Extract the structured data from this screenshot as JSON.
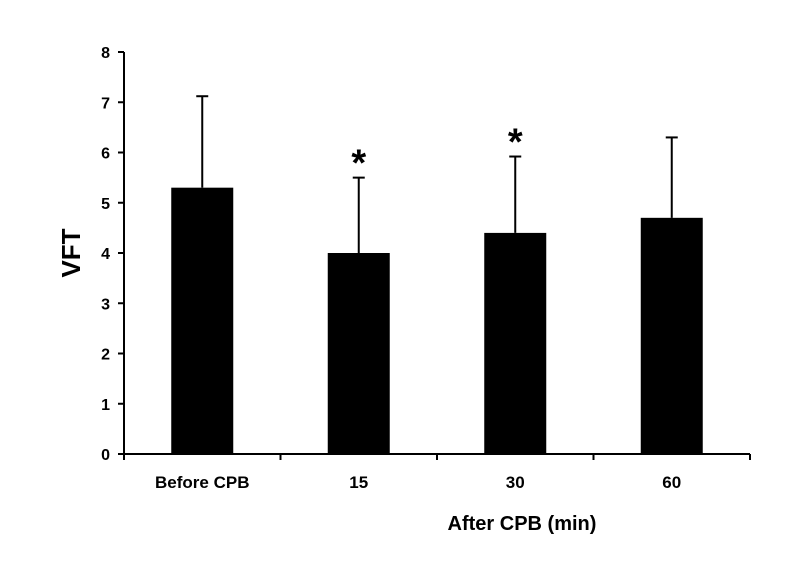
{
  "chart_data": {
    "type": "bar",
    "title": "",
    "categories": [
      "Before CPB",
      "15",
      "30",
      "60"
    ],
    "values": [
      5.3,
      4.0,
      4.4,
      4.7
    ],
    "error_upper": [
      7.12,
      5.5,
      5.92,
      6.3
    ],
    "significance": [
      "",
      "*",
      "*",
      ""
    ],
    "xlabel": "After CPB (min)",
    "ylabel": "VFT",
    "ylim": [
      0,
      8
    ],
    "yticks": [
      "0",
      "1",
      "2",
      "3",
      "4",
      "5",
      "6",
      "7",
      "8"
    ],
    "grid": false,
    "bar_color": "#000000"
  }
}
